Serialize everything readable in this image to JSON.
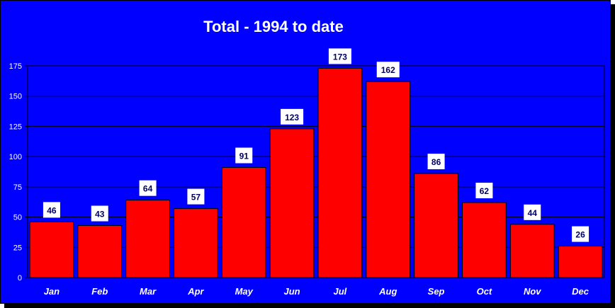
{
  "chart_data": {
    "type": "bar",
    "title": "Total - 1994 to date",
    "xlabel": "",
    "ylabel": "",
    "categories": [
      "Jan",
      "Feb",
      "Mar",
      "Apr",
      "May",
      "Jun",
      "Jul",
      "Aug",
      "Sep",
      "Oct",
      "Nov",
      "Dec"
    ],
    "values": [
      46,
      43,
      64,
      57,
      91,
      123,
      173,
      162,
      86,
      62,
      44,
      26
    ],
    "ylim": [
      0,
      175
    ],
    "yticks": [
      0,
      25,
      50,
      75,
      100,
      125,
      150,
      175
    ],
    "grid": true,
    "legend": "none",
    "colors": {
      "background": "#0000ff",
      "bar": "#ff0000",
      "gridline": "#000000",
      "text": "#ffffff",
      "data_label_bg": "#ffffff",
      "data_label_text": "#000066"
    }
  }
}
